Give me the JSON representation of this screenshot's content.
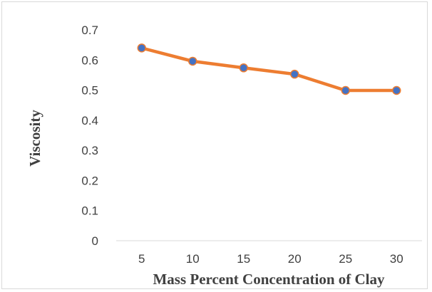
{
  "chart_data": {
    "type": "line",
    "title": "",
    "xlabel": "Mass Percent Concentration of Clay",
    "ylabel": "Viscosity",
    "categories": [
      "5",
      "10",
      "15",
      "20",
      "25",
      "30"
    ],
    "series": [
      {
        "values": [
          0.64,
          0.596,
          0.574,
          0.553,
          0.499,
          0.499
        ],
        "line_color": "#ED7D31",
        "marker_color": "#4472C4"
      }
    ],
    "y_ticks": [
      "0",
      "0.1",
      "0.2",
      "0.3",
      "0.4",
      "0.5",
      "0.6",
      "0.7"
    ],
    "ylim": [
      0,
      0.7
    ],
    "grid": false,
    "legend": "none"
  }
}
